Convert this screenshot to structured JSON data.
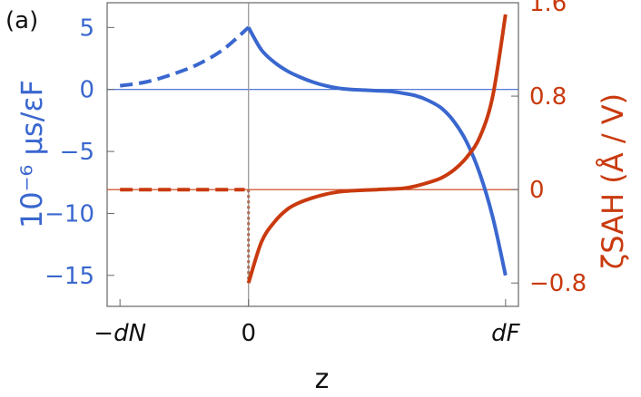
{
  "panel_label": "(a)",
  "colors": {
    "left_axis": "#3a67cf",
    "right_axis": "#c93a0e",
    "frame": "#666666",
    "zero_line": "#999999"
  },
  "chart_data": {
    "type": "line",
    "xlabel": "z",
    "ylabel_left": "10⁻⁶ μs/εF",
    "ylabel_right": "ζSAH (Å / V)",
    "xticks": [
      {
        "x": -1,
        "label": "−dN"
      },
      {
        "x": 0,
        "label": "0"
      },
      {
        "x": 2,
        "label": "dF"
      }
    ],
    "xlim": [
      -1.1,
      2.1
    ],
    "y_left": {
      "lim": [
        -17.5,
        7
      ],
      "ticks": [
        5,
        0,
        -5,
        -10,
        -15
      ],
      "tick_labels": [
        "5",
        "0",
        "−5",
        "−10",
        "−15"
      ]
    },
    "y_right": {
      "lim": [
        -1.0,
        1.6
      ],
      "ticks": [
        1.6,
        0.8,
        0,
        -0.8
      ],
      "tick_labels": [
        "1.6",
        "0.8",
        "0",
        "−0.8"
      ]
    },
    "series": [
      {
        "axis": "left",
        "style": "dashed",
        "color": "#3a67cf",
        "x": [
          -1.0,
          -0.8,
          -0.6,
          -0.4,
          -0.2,
          0.0
        ],
        "y": [
          0.3,
          0.6,
          1.2,
          2.0,
          3.2,
          5.0
        ]
      },
      {
        "axis": "left",
        "style": "solid",
        "color": "#3a67cf",
        "x": [
          0.0,
          0.1,
          0.2,
          0.3,
          0.4,
          0.5,
          0.6,
          0.7,
          0.8,
          0.9,
          1.0,
          1.1,
          1.2,
          1.3,
          1.4,
          1.5,
          1.6,
          1.7,
          1.8,
          1.9,
          2.0
        ],
        "y": [
          5.0,
          3.2,
          2.2,
          1.5,
          1.0,
          0.6,
          0.3,
          0.1,
          0.0,
          -0.05,
          -0.1,
          -0.15,
          -0.3,
          -0.5,
          -0.9,
          -1.5,
          -2.6,
          -4.3,
          -6.8,
          -10.3,
          -15.0
        ]
      },
      {
        "axis": "right",
        "style": "dashed",
        "color": "#c93a0e",
        "x": [
          -1.0,
          -0.5,
          -0.03
        ],
        "y": [
          0.0,
          0.0,
          0.0
        ]
      },
      {
        "axis": "right",
        "style": "dotted",
        "color": "#b06a50",
        "x": [
          0.0,
          0.0
        ],
        "y": [
          0.0,
          -0.8
        ]
      },
      {
        "axis": "right",
        "style": "solid",
        "color": "#c93a0e",
        "x": [
          0.0,
          0.1,
          0.2,
          0.3,
          0.4,
          0.5,
          0.6,
          0.7,
          0.8,
          0.9,
          1.0,
          1.1,
          1.2,
          1.3,
          1.4,
          1.5,
          1.6,
          1.7,
          1.8,
          1.9,
          2.0
        ],
        "y": [
          -0.8,
          -0.45,
          -0.28,
          -0.17,
          -0.11,
          -0.07,
          -0.04,
          -0.02,
          -0.01,
          -0.005,
          0.0,
          0.005,
          0.01,
          0.03,
          0.06,
          0.1,
          0.17,
          0.28,
          0.45,
          0.8,
          1.5
        ]
      }
    ],
    "reference_lines": [
      {
        "axis": "left",
        "y": 0,
        "color": "#3a67cf"
      },
      {
        "axis": "right",
        "y": 0,
        "color": "#c93a0e"
      },
      {
        "axis": "x",
        "x": 0,
        "color": "#999999"
      }
    ]
  }
}
